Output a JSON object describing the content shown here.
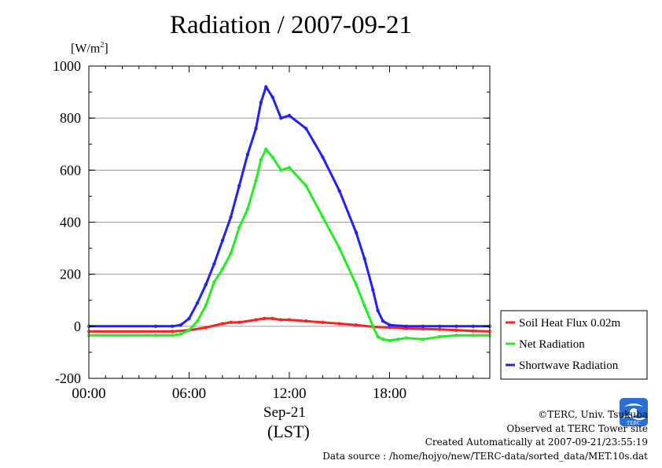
{
  "chart_data": {
    "type": "line",
    "title": "Radiation / 2007-09-21",
    "ylabel_unit_prefix": "[W/m",
    "ylabel_unit_sup": "2",
    "ylabel_unit_suffix": "]",
    "ylim": [
      -200,
      1000
    ],
    "yticks": [
      -200,
      0,
      200,
      400,
      600,
      800,
      1000
    ],
    "xlim_hours": [
      0,
      24
    ],
    "xticks": [
      {
        "hour": 0,
        "label": "00:00"
      },
      {
        "hour": 6,
        "label": "06:00"
      },
      {
        "hour": 12,
        "label": "12:00"
      },
      {
        "hour": 18,
        "label": "18:00"
      }
    ],
    "xlabel_date": "Sep-21",
    "xlabel_tz": "(LST)",
    "grid": "horizontal",
    "legend_position": "right",
    "series": [
      {
        "name": "Soil Heat Flux 0.02m",
        "color": "#ff2020",
        "hours": [
          0,
          5,
          6,
          7,
          8,
          8.5,
          9,
          10,
          10.5,
          11,
          11.5,
          12,
          13,
          14,
          15,
          16,
          17,
          18,
          19,
          20,
          21,
          22,
          23,
          24
        ],
        "values": [
          -20,
          -20,
          -15,
          -5,
          10,
          15,
          15,
          25,
          30,
          30,
          25,
          25,
          20,
          15,
          10,
          5,
          -2,
          -5,
          -8,
          -10,
          -12,
          -15,
          -18,
          -20
        ]
      },
      {
        "name": "Net Radiation",
        "color": "#22ee22",
        "hours": [
          0,
          4,
          5,
          5.5,
          6,
          6.5,
          7,
          7.5,
          8,
          8.5,
          9,
          9.5,
          10,
          10.3,
          10.6,
          11,
          11.5,
          12,
          13,
          14,
          15,
          16,
          16.5,
          17,
          17.3,
          17.6,
          18,
          18.5,
          19,
          20,
          21,
          22,
          23,
          24
        ],
        "values": [
          -35,
          -35,
          -35,
          -30,
          -15,
          20,
          80,
          170,
          220,
          280,
          380,
          450,
          560,
          640,
          680,
          650,
          600,
          610,
          540,
          420,
          300,
          160,
          80,
          0,
          -40,
          -50,
          -55,
          -50,
          -45,
          -50,
          -40,
          -35,
          -35,
          -35
        ]
      },
      {
        "name": "Shortwave Radiation",
        "color": "#2020ff",
        "hours": [
          0,
          4,
          5,
          5.5,
          6,
          6.5,
          7,
          7.5,
          8,
          8.5,
          9,
          9.5,
          10,
          10.3,
          10.6,
          11,
          11.5,
          12,
          13,
          14,
          15,
          16,
          16.5,
          17,
          17.3,
          17.6,
          18,
          19,
          20,
          21,
          22,
          23,
          24
        ],
        "values": [
          0,
          0,
          0,
          5,
          30,
          90,
          160,
          240,
          330,
          420,
          540,
          660,
          760,
          860,
          920,
          880,
          800,
          810,
          760,
          650,
          520,
          360,
          260,
          140,
          60,
          20,
          5,
          0,
          0,
          0,
          0,
          0,
          0
        ]
      }
    ]
  },
  "footer": {
    "credit": "©TERC, Univ. Tsukuba",
    "site": "Observed at TERC Tower site",
    "created": "Created Automatically at 2007-09-21/23:55:19",
    "source": "Data source : /home/hojyo/new/TERC-data/sorted_data/MET.10s.dat",
    "logo_text": "TERC"
  }
}
